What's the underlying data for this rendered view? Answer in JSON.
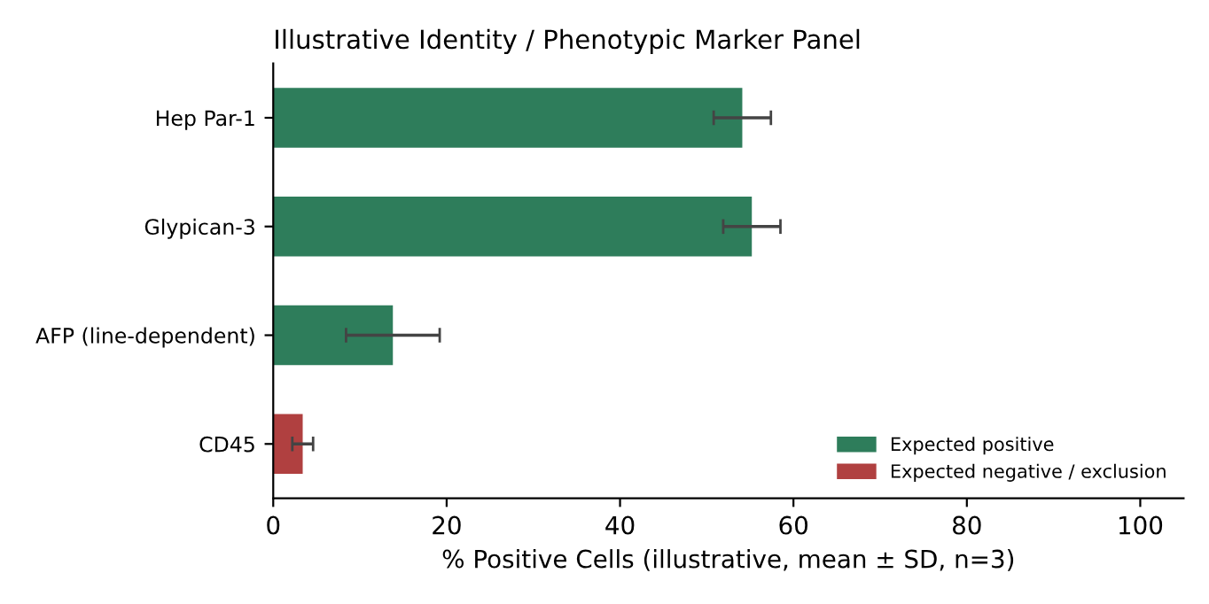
{
  "chart_data": {
    "type": "bar",
    "orientation": "horizontal",
    "title": "Illustrative Identity / Phenotypic Marker Panel",
    "xlabel": "% Positive Cells (illustrative, mean ± SD, n=3)",
    "categories": [
      "Hep Par-1",
      "Glypican-3",
      "AFP (line-dependent)",
      "CD45"
    ],
    "series": [
      {
        "name": "Expected positive",
        "color": "#2e7d5b",
        "values": [
          54.1,
          55.2,
          13.8,
          null
        ],
        "errors": [
          3.3,
          3.3,
          5.4,
          null
        ]
      },
      {
        "name": "Expected negative / exclusion",
        "color": "#b04040",
        "values": [
          null,
          null,
          null,
          3.4
        ],
        "errors": [
          null,
          null,
          null,
          1.2
        ]
      }
    ],
    "xlim": [
      0,
      105
    ],
    "xticks": [
      0,
      20,
      40,
      60,
      80,
      100
    ],
    "grid": false,
    "legend": "bottom right"
  }
}
